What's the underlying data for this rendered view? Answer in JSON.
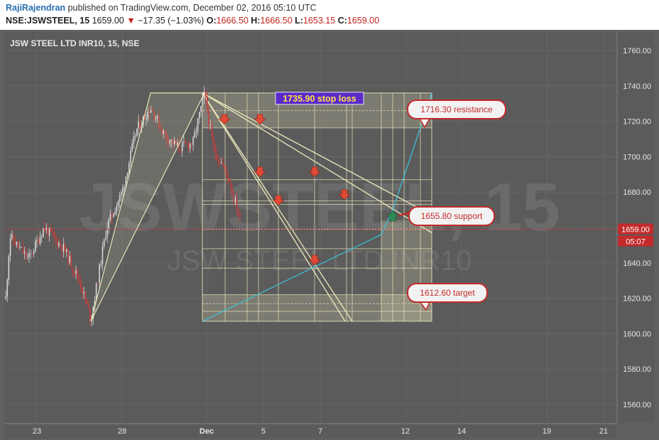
{
  "header": {
    "author": "RajiRajendran",
    "published": "published on TradingView.com, December 02, 2016 05:10 UTC",
    "symbol": "NSE:JSWSTEEL, 15",
    "price": "1659.00",
    "change": "−17.35 (−1.03%)",
    "o_label": "O:",
    "o_value": "1666.50",
    "h_label": "H:",
    "h_value": "1666.50",
    "l_label": "L:",
    "l_value": "1653.15",
    "c_label": "C:",
    "c_value": "1659.00"
  },
  "chart_data": {
    "type": "candlestick",
    "title": "JSW STEEL LTD INR10, 15, NSE",
    "watermark_main": "JSWSTEEL, 15",
    "watermark_sub": "JSW STEEL LTD INR10",
    "y_axis": {
      "min": 1550,
      "max": 1770,
      "ticks": [
        1560,
        1580,
        1600,
        1620,
        1640,
        1660,
        1680,
        1700,
        1720,
        1740,
        1760
      ]
    },
    "x_axis": {
      "ticks": [
        "23",
        "28",
        "Dec",
        "5",
        "7",
        "12",
        "14",
        "19",
        "21"
      ]
    },
    "last_price": {
      "value": "1659.00",
      "countdown": "05:07"
    },
    "annotations": [
      {
        "text": "1735.90 stop loss",
        "price": 1735.9
      },
      {
        "text": "1716.30 resistance",
        "price": 1716.3
      },
      {
        "text": "1655.80 support",
        "price": 1655.8
      },
      {
        "text": "1612.60 target",
        "price": 1612.6
      }
    ],
    "swing_points": {
      "low": 1607,
      "high": 1736,
      "last_low": 1656
    },
    "colors": {
      "bg": "#616161",
      "up": "#d8d8d8",
      "down": "#c83c3c",
      "fib": "#f3eec0",
      "trend": "#39c6dc",
      "price_line": "#d03030",
      "arrow_down": "#e04a36",
      "arrow_up": "#2e8b57",
      "label": "#c42a2a"
    }
  }
}
